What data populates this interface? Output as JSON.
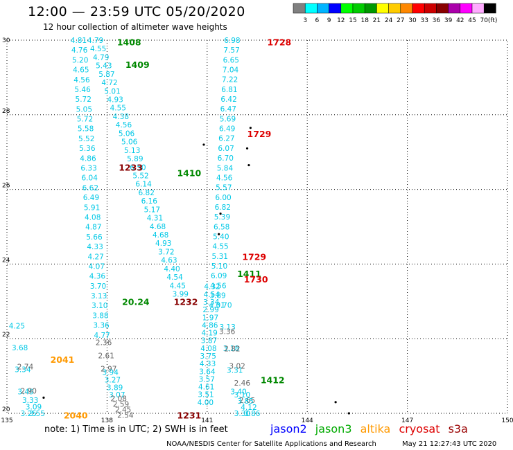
{
  "title": "12:00 — 23:59 UTC 05/20/2020",
  "subtitle": "12 hour collection of altimeter wave heights",
  "scale": {
    "colors": [
      "#808080",
      "#00ffff",
      "#00b4ff",
      "#0000ff",
      "#00ff00",
      "#00cc00",
      "#009900",
      "#ffff00",
      "#ffcc00",
      "#ff8800",
      "#ff0000",
      "#cc0000",
      "#880000",
      "#aa00aa",
      "#ff00ff",
      "#ffaaff",
      "#000000"
    ],
    "labels": [
      "3",
      "6",
      "9",
      "12",
      "15",
      "18",
      "21",
      "24",
      "27",
      "30",
      "33",
      "36",
      "39",
      "42",
      "45",
      "70"
    ],
    "unit": "(ft)"
  },
  "axes": {
    "lon": [
      "135",
      "138",
      "141",
      "144",
      "147",
      "150"
    ],
    "lat": [
      "30",
      "28",
      "26",
      "24",
      "22",
      "20"
    ]
  },
  "note": "note: 1) Time is in UTC; 2) SWH is in feet",
  "legend": [
    {
      "name": "jason2",
      "color": "#0000ff"
    },
    {
      "name": "jason3",
      "color": "#00aa00"
    },
    {
      "name": "altika",
      "color": "#ff9900"
    },
    {
      "name": "cryosat",
      "color": "#dd0000"
    },
    {
      "name": "s3a",
      "color": "#990000"
    }
  ],
  "credit": "NOAA/NESDIS Center for Satellite Applications and Research",
  "credit_date": "May 21 12:27:43 UTC 2020",
  "colors": {
    "cyan": "#00c8e6",
    "gray": "#666666",
    "green": "#008800",
    "red": "#dd0000",
    "darkred": "#880000",
    "orange": "#ff9900",
    "black": "#000000"
  },
  "tracks": [
    {
      "id": "t1",
      "color": "#00c8e6",
      "lon0": 137.65,
      "lat0": 30.0,
      "lon1": 140.2,
      "lat1": 23.2,
      "values": [
        "4.79",
        "4.55",
        "4.79",
        "5.43",
        "5.87",
        "4.72",
        "5.01",
        "4.93",
        "4.55",
        "4.38",
        "4.56",
        "5.06",
        "5.06",
        "5.13",
        "5.89",
        "6.50",
        "5.52",
        "6.14",
        "6.82",
        "6.16",
        "5.17",
        "4.31",
        "4.68",
        "4.68",
        "4.93",
        "3.72",
        "4.63",
        "4.40",
        "4.54",
        "4.45",
        "3.99"
      ]
    },
    {
      "id": "t2",
      "color": "#00c8e6",
      "lon0": 137.15,
      "lat0": 30.0,
      "lon1": 137.85,
      "lat1": 22.1,
      "values": [
        "4.81",
        "4.76",
        "5.20",
        "4.65",
        "4.56",
        "5.46",
        "5.72",
        "5.05",
        "5.72",
        "5.58",
        "5.52",
        "5.36",
        "4.86",
        "6.33",
        "6.04",
        "6.62",
        "6.49",
        "5.91",
        "4.08",
        "4.87",
        "5.66",
        "4.33",
        "4.27",
        "4.07",
        "4.36",
        "3.70",
        "3.13",
        "3.10",
        "3.88",
        "3.36",
        "4.77"
      ]
    },
    {
      "id": "t2b",
      "color": "#666666",
      "lon0": 137.9,
      "lat0": 21.9,
      "lon1": 138.05,
      "lat1": 21.2,
      "values": [
        "2.36",
        "2.61",
        "2.97"
      ]
    },
    {
      "id": "t2c",
      "color": "#00c8e6",
      "lon0": 138.1,
      "lat0": 21.1,
      "lon1": 138.3,
      "lat1": 20.5,
      "values": [
        "3.94",
        "3.27",
        "3.89",
        "3.07"
      ]
    },
    {
      "id": "t2d",
      "color": "#666666",
      "lon0": 138.35,
      "lat0": 20.4,
      "lon1": 138.55,
      "lat1": 19.95,
      "values": [
        "2.08",
        "2.59",
        "2.45",
        "2.54"
      ]
    },
    {
      "id": "t3",
      "color": "#00c8e6",
      "lon0": 141.15,
      "lat0": 23.4,
      "lon1": 140.95,
      "lat1": 20.3,
      "values": [
        "4.32",
        "4.54",
        "3.34",
        "2.99",
        "1.97",
        "4.86",
        "4.19",
        "3.87",
        "4.08",
        "3.75",
        "4.33",
        "3.64",
        "3.57",
        "4.61",
        "3.51",
        "4.00"
      ]
    },
    {
      "id": "t4",
      "color": "#00c8e6",
      "lon0": 141.75,
      "lat0": 30.0,
      "lon1": 141.3,
      "lat1": 22.9,
      "values": [
        "6.98",
        "7.57",
        "6.65",
        "7.04",
        "7.22",
        "6.81",
        "6.42",
        "6.47",
        "5.69",
        "6.49",
        "6.27",
        "6.07",
        "6.70",
        "5.84",
        "4.56",
        "5.57",
        "6.00",
        "6.82",
        "5.39",
        "6.58",
        "5.40",
        "4.55",
        "5.31",
        "5.10",
        "6.09",
        "4.56",
        "3.89",
        "4.01"
      ]
    },
    {
      "id": "t5",
      "color": "#00c8e6",
      "lon0": 141.5,
      "lat0": 22.9,
      "lon1": 142.05,
      "lat1": 20.0,
      "values": [
        "3.70",
        "3.13",
        "3.18",
        "3.31",
        "3.40",
        "3.30"
      ]
    },
    {
      "id": "t5b",
      "color": "#666666",
      "lon0": 141.6,
      "lat0": 22.2,
      "lon1": 142.2,
      "lat1": 20.35,
      "values": [
        "3.36",
        "2.82",
        "3.02",
        "2.46",
        "2.65"
      ]
    },
    {
      "id": "t5c",
      "color": "#00c8e6",
      "lon0": 142.05,
      "lat0": 20.5,
      "lon1": 142.35,
      "lat1": 20.0,
      "values": [
        "3.10",
        "3.85",
        "4.12",
        "3.86"
      ]
    },
    {
      "id": "t6",
      "color": "#00c8e6",
      "lon0": 135.3,
      "lat0": 22.35,
      "lon1": 135.65,
      "lat1": 20.0,
      "values": [
        "4.25",
        "3.68",
        "3.34",
        "3.49",
        "3.25"
      ]
    },
    {
      "id": "t6b",
      "color": "#666666",
      "lon0": 135.55,
      "lat0": 21.25,
      "lon1": 135.65,
      "lat1": 20.6,
      "values": [
        "2.74",
        "2.90"
      ]
    },
    {
      "id": "t6c",
      "color": "#00c8e6",
      "lon0": 135.7,
      "lat0": 20.35,
      "lon1": 135.9,
      "lat1": 20.0,
      "values": [
        "3.33",
        "3.09",
        "3.55"
      ]
    }
  ],
  "labels": [
    {
      "text": "1408",
      "color": "#008800",
      "lon": 138.3,
      "lat": 29.95
    },
    {
      "text": "1409",
      "color": "#008800",
      "lon": 138.55,
      "lat": 29.35
    },
    {
      "text": "1233",
      "color": "#880000",
      "lon": 138.35,
      "lat": 26.6
    },
    {
      "text": "1410",
      "color": "#008800",
      "lon": 140.1,
      "lat": 26.45
    },
    {
      "text": "1232",
      "color": "#880000",
      "lon": 140.0,
      "lat": 23.0
    },
    {
      "text": "20.24",
      "color": "#008800",
      "lon": 138.45,
      "lat": 23.0
    },
    {
      "text": "1411",
      "color": "#008800",
      "lon": 141.9,
      "lat": 23.75
    },
    {
      "text": "1730",
      "color": "#dd0000",
      "lon": 142.1,
      "lat": 23.6
    },
    {
      "text": "1728",
      "color": "#dd0000",
      "lon": 142.8,
      "lat": 29.95
    },
    {
      "text": "1729",
      "color": "#dd0000",
      "lon": 142.2,
      "lat": 27.5
    },
    {
      "text": "1729",
      "color": "#dd0000",
      "lon": 142.05,
      "lat": 24.2
    },
    {
      "text": "1412",
      "color": "#008800",
      "lon": 142.6,
      "lat": 20.9
    },
    {
      "text": "2041",
      "color": "#ff9900",
      "lon": 136.3,
      "lat": 21.45
    },
    {
      "text": "2040",
      "color": "#ff9900",
      "lon": 136.7,
      "lat": 19.95
    },
    {
      "text": "1231",
      "color": "#880000",
      "lon": 140.1,
      "lat": 19.95
    }
  ],
  "islands": [
    {
      "lon": 142.3,
      "lat": 27.65
    },
    {
      "lon": 142.2,
      "lat": 27.1
    },
    {
      "lon": 142.25,
      "lat": 26.65
    },
    {
      "lon": 140.9,
      "lat": 27.2
    },
    {
      "lon": 141.4,
      "lat": 25.35
    },
    {
      "lon": 141.35,
      "lat": 24.8
    },
    {
      "lon": 136.1,
      "lat": 20.42
    },
    {
      "lon": 144.85,
      "lat": 20.3
    },
    {
      "lon": 145.25,
      "lat": 20.0
    }
  ]
}
